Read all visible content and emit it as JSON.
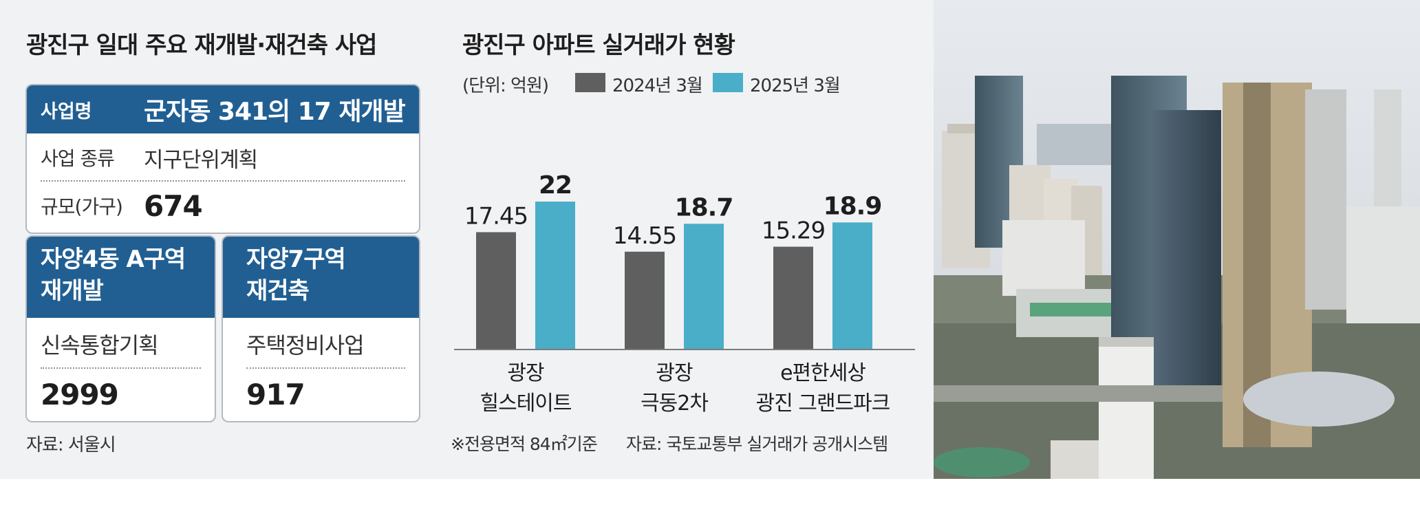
{
  "left": {
    "title": "광진구 일대 주요 재개발·재건축 사업",
    "project1": {
      "header_label": "사업명",
      "header_value": "군자동 341의 17 재개발",
      "type_label": "사업 종류",
      "type_value": "지구단위계획",
      "scale_label": "규모(가구)",
      "scale_value": "674"
    },
    "project2": {
      "name_line1": "자양4동 A구역",
      "name_line2": "재개발",
      "type": "신속통합기획",
      "scale": "2999"
    },
    "project3": {
      "name_line1": "자양7구역",
      "name_line2": "재건축",
      "type": "주택정비사업",
      "scale": "917"
    },
    "source": "자료: 서울시"
  },
  "chart_data": {
    "type": "bar",
    "title": "광진구 아파트 실거래가 현황",
    "unit": "(단위: 억원)",
    "categories": [
      [
        "광장",
        "힐스테이트"
      ],
      [
        "광장",
        "극동2차"
      ],
      [
        "e편한세상",
        "광진 그랜드파크"
      ]
    ],
    "series": [
      {
        "name": "2024년 3월",
        "color": "#5f5f5f",
        "values": [
          17.45,
          14.55,
          15.29
        ],
        "labels": [
          "17.45",
          "14.55",
          "15.29"
        ]
      },
      {
        "name": "2025년 3월",
        "color": "#4aaec8",
        "values": [
          22,
          18.7,
          18.9
        ],
        "labels": [
          "22",
          "18.7",
          "18.9"
        ]
      }
    ],
    "ylim": [
      0,
      22
    ],
    "grid": false,
    "legend": "top-left",
    "note": "※전용면적 84㎡기준",
    "source": "자료: 국토교통부 실거래가 공개시스템"
  }
}
